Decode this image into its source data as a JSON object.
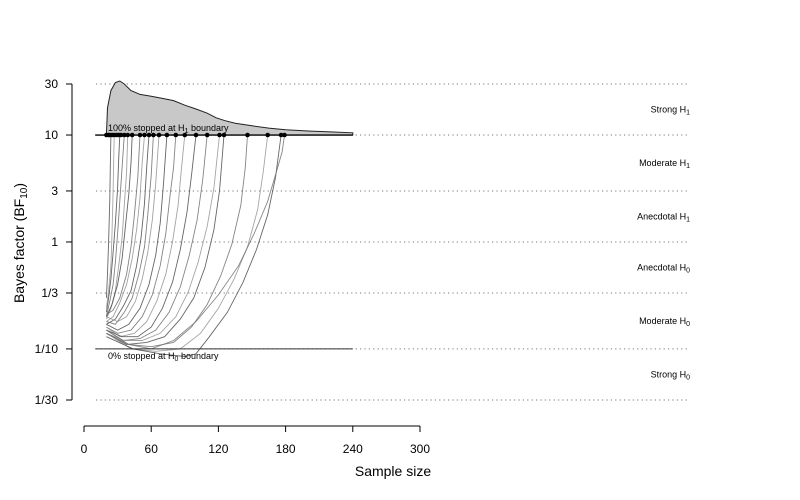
{
  "chart_data": {
    "type": "line",
    "title": "",
    "xlabel": "Sample size",
    "ylabel": {
      "main": "Bayes factor (BF",
      "sub": "10",
      "close": ")"
    },
    "x_axis": {
      "range": [
        0,
        300
      ],
      "ticks": [
        0,
        60,
        120,
        180,
        240,
        300
      ],
      "tick_labels": [
        "0",
        "60",
        "120",
        "180",
        "240",
        "300"
      ]
    },
    "y_axis": {
      "scale": "log10",
      "range": [
        0.0333,
        30
      ],
      "ticks": [
        30,
        10,
        3,
        1,
        0.3333,
        0.1,
        0.0333
      ],
      "tick_labels": [
        "30",
        "10",
        "3",
        "1",
        "1/3",
        "1/10",
        "1/30"
      ]
    },
    "grid": {
      "horizontal_dotted_at": [
        30,
        10,
        3,
        1,
        0.3333,
        0.1,
        0.0333
      ]
    },
    "evidence_bands": [
      {
        "label": "Strong H",
        "sub": "1",
        "y": 17.3
      },
      {
        "label": "Moderate H",
        "sub": "1",
        "y": 5.48
      },
      {
        "label": "Anecdotal H",
        "sub": "1",
        "y": 1.73
      },
      {
        "label": "Anecdotal H",
        "sub": "0",
        "y": 0.577
      },
      {
        "label": "Moderate H",
        "sub": "0",
        "y": 0.1826
      },
      {
        "label": "Strong H",
        "sub": "0",
        "y": 0.0577
      }
    ],
    "boundaries": {
      "upper": {
        "value": 10,
        "x_range": [
          10,
          240
        ],
        "label": "100% stopped at H",
        "label_sub": "1",
        "label_tail": " boundary"
      },
      "lower": {
        "value": 0.1,
        "x_range": [
          10,
          240
        ],
        "label": "0% stopped at H",
        "label_sub": "0",
        "label_tail": " boundary"
      }
    },
    "stopping_density": {
      "baseline": 10,
      "points": [
        [
          20,
          10
        ],
        [
          21,
          18
        ],
        [
          24,
          26
        ],
        [
          28,
          31
        ],
        [
          32,
          32
        ],
        [
          36,
          30
        ],
        [
          42,
          26
        ],
        [
          50,
          24
        ],
        [
          60,
          23
        ],
        [
          70,
          22
        ],
        [
          80,
          21
        ],
        [
          90,
          19
        ],
        [
          100,
          17.5
        ],
        [
          110,
          16
        ],
        [
          118,
          14.5
        ],
        [
          126,
          13.6
        ],
        [
          135,
          12.9
        ],
        [
          150,
          12.2
        ],
        [
          165,
          11.6
        ],
        [
          180,
          11.2
        ],
        [
          200,
          10.9
        ],
        [
          220,
          10.7
        ],
        [
          240,
          10.5
        ]
      ]
    },
    "stopping_points_x": [
      20,
      22,
      23,
      25,
      27,
      29,
      31,
      33,
      36,
      39,
      43,
      50,
      54,
      58,
      62,
      67,
      74,
      82,
      90,
      100,
      110,
      121,
      125,
      146,
      164,
      176,
      179
    ],
    "series": [
      {
        "values": [
          [
            20,
            0.22
          ],
          [
            22,
            0.3
          ],
          [
            24,
            0.45
          ],
          [
            26,
            0.8
          ],
          [
            28,
            1.5
          ],
          [
            30,
            3.2
          ],
          [
            31,
            6
          ],
          [
            32,
            10
          ]
        ]
      },
      {
        "values": [
          [
            20,
            0.2
          ],
          [
            23,
            0.28
          ],
          [
            26,
            0.4
          ],
          [
            28,
            0.65
          ],
          [
            30,
            1.2
          ],
          [
            32,
            2.4
          ],
          [
            34,
            5
          ],
          [
            36,
            10
          ]
        ]
      },
      {
        "values": [
          [
            20,
            0.19
          ],
          [
            24,
            0.24
          ],
          [
            28,
            0.35
          ],
          [
            31,
            0.6
          ],
          [
            34,
            1.1
          ],
          [
            36,
            2.2
          ],
          [
            38,
            4.5
          ],
          [
            39,
            10
          ]
        ]
      },
      {
        "values": [
          [
            20,
            0.2
          ],
          [
            25,
            0.26
          ],
          [
            30,
            0.4
          ],
          [
            34,
            0.7
          ],
          [
            37,
            1.4
          ],
          [
            40,
            2.8
          ],
          [
            42,
            5.5
          ],
          [
            43,
            10
          ]
        ]
      },
      {
        "values": [
          [
            20,
            0.21
          ],
          [
            26,
            0.23
          ],
          [
            32,
            0.3
          ],
          [
            38,
            0.5
          ],
          [
            42,
            0.9
          ],
          [
            45,
            1.8
          ],
          [
            48,
            4
          ],
          [
            50,
            10
          ]
        ]
      },
      {
        "values": [
          [
            20,
            0.18
          ],
          [
            26,
            0.2
          ],
          [
            32,
            0.27
          ],
          [
            38,
            0.4
          ],
          [
            43,
            0.7
          ],
          [
            47,
            1.3
          ],
          [
            50,
            2.6
          ],
          [
            52,
            5.5
          ],
          [
            54,
            10
          ]
        ]
      },
      {
        "values": [
          [
            20,
            0.17
          ],
          [
            28,
            0.19
          ],
          [
            35,
            0.25
          ],
          [
            42,
            0.35
          ],
          [
            47,
            0.6
          ],
          [
            51,
            1.1
          ],
          [
            54,
            2.3
          ],
          [
            56,
            5
          ],
          [
            58,
            10
          ]
        ]
      },
      {
        "values": [
          [
            20,
            0.18
          ],
          [
            28,
            0.17
          ],
          [
            36,
            0.22
          ],
          [
            43,
            0.3
          ],
          [
            49,
            0.5
          ],
          [
            54,
            0.9
          ],
          [
            57,
            1.8
          ],
          [
            60,
            4.2
          ],
          [
            62,
            10
          ]
        ]
      },
      {
        "values": [
          [
            20,
            0.2
          ],
          [
            30,
            0.18
          ],
          [
            38,
            0.2
          ],
          [
            46,
            0.28
          ],
          [
            52,
            0.45
          ],
          [
            57,
            0.8
          ],
          [
            61,
            1.6
          ],
          [
            64,
            3.5
          ],
          [
            67,
            10
          ]
        ]
      },
      {
        "values": [
          [
            20,
            0.17
          ],
          [
            30,
            0.15
          ],
          [
            40,
            0.17
          ],
          [
            50,
            0.24
          ],
          [
            58,
            0.4
          ],
          [
            64,
            0.75
          ],
          [
            68,
            1.5
          ],
          [
            71,
            3.5
          ],
          [
            74,
            10
          ]
        ]
      },
      {
        "values": [
          [
            20,
            0.16
          ],
          [
            30,
            0.14
          ],
          [
            42,
            0.15
          ],
          [
            52,
            0.2
          ],
          [
            61,
            0.32
          ],
          [
            68,
            0.6
          ],
          [
            73,
            1.2
          ],
          [
            77,
            2.8
          ],
          [
            80,
            5
          ],
          [
            82,
            10
          ]
        ]
      },
      {
        "values": [
          [
            20,
            0.16
          ],
          [
            32,
            0.13
          ],
          [
            45,
            0.14
          ],
          [
            56,
            0.18
          ],
          [
            65,
            0.28
          ],
          [
            73,
            0.5
          ],
          [
            79,
            1.0
          ],
          [
            84,
            2.2
          ],
          [
            87,
            4.8
          ],
          [
            90,
            10
          ]
        ]
      },
      {
        "values": [
          [
            20,
            0.15
          ],
          [
            34,
            0.13
          ],
          [
            48,
            0.13
          ],
          [
            60,
            0.16
          ],
          [
            70,
            0.24
          ],
          [
            79,
            0.42
          ],
          [
            86,
            0.85
          ],
          [
            92,
            1.9
          ],
          [
            96,
            4.2
          ],
          [
            100,
            10
          ]
        ]
      },
      {
        "values": [
          [
            20,
            0.15
          ],
          [
            35,
            0.12
          ],
          [
            50,
            0.125
          ],
          [
            64,
            0.15
          ],
          [
            76,
            0.22
          ],
          [
            86,
            0.38
          ],
          [
            94,
            0.75
          ],
          [
            101,
            1.6
          ],
          [
            106,
            3.8
          ],
          [
            110,
            10
          ]
        ]
      },
      {
        "values": [
          [
            20,
            0.14
          ],
          [
            36,
            0.12
          ],
          [
            52,
            0.12
          ],
          [
            68,
            0.14
          ],
          [
            82,
            0.2
          ],
          [
            93,
            0.34
          ],
          [
            102,
            0.65
          ],
          [
            110,
            1.4
          ],
          [
            116,
            3.2
          ],
          [
            121,
            10
          ]
        ]
      },
      {
        "values": [
          [
            20,
            0.14
          ],
          [
            38,
            0.11
          ],
          [
            56,
            0.115
          ],
          [
            72,
            0.13
          ],
          [
            86,
            0.19
          ],
          [
            98,
            0.3
          ],
          [
            108,
            0.58
          ],
          [
            116,
            1.3
          ],
          [
            121,
            3
          ],
          [
            125,
            10
          ]
        ]
      },
      {
        "values": [
          [
            20,
            0.15
          ],
          [
            40,
            0.11
          ],
          [
            60,
            0.105
          ],
          [
            80,
            0.115
          ],
          [
            96,
            0.16
          ],
          [
            110,
            0.26
          ],
          [
            122,
            0.48
          ],
          [
            132,
            0.95
          ],
          [
            140,
            2.2
          ],
          [
            144,
            5
          ],
          [
            146,
            10
          ]
        ]
      },
      {
        "values": [
          [
            20,
            0.14
          ],
          [
            42,
            0.1
          ],
          [
            64,
            0.095
          ],
          [
            86,
            0.1
          ],
          [
            104,
            0.14
          ],
          [
            120,
            0.24
          ],
          [
            134,
            0.45
          ],
          [
            146,
            0.9
          ],
          [
            155,
            2
          ],
          [
            160,
            4.5
          ],
          [
            164,
            10
          ]
        ]
      },
      {
        "values": [
          [
            20,
            0.13
          ],
          [
            44,
            0.1
          ],
          [
            68,
            0.09
          ],
          [
            90,
            0.085
          ],
          [
            100,
            0.09
          ],
          [
            112,
            0.13
          ],
          [
            128,
            0.22
          ],
          [
            142,
            0.42
          ],
          [
            154,
            0.85
          ],
          [
            164,
            1.8
          ],
          [
            171,
            4
          ],
          [
            176,
            10
          ]
        ]
      },
      {
        "values": [
          [
            20,
            0.14
          ],
          [
            40,
            0.11
          ],
          [
            60,
            0.1
          ],
          [
            80,
            0.12
          ],
          [
            100,
            0.18
          ],
          [
            120,
            0.32
          ],
          [
            138,
            0.6
          ],
          [
            152,
            1.2
          ],
          [
            164,
            2.4
          ],
          [
            172,
            4.6
          ],
          [
            177,
            7
          ],
          [
            179,
            10
          ]
        ]
      },
      {
        "values": [
          [
            20,
            0.24
          ],
          [
            22,
            0.35
          ],
          [
            24,
            0.6
          ],
          [
            25,
            1.2
          ],
          [
            26,
            3
          ],
          [
            27,
            10
          ]
        ]
      },
      {
        "values": [
          [
            20,
            0.3
          ],
          [
            21,
            0.5
          ],
          [
            22,
            1
          ],
          [
            23,
            2.5
          ],
          [
            23.5,
            5
          ],
          [
            24,
            10
          ]
        ]
      }
    ]
  }
}
